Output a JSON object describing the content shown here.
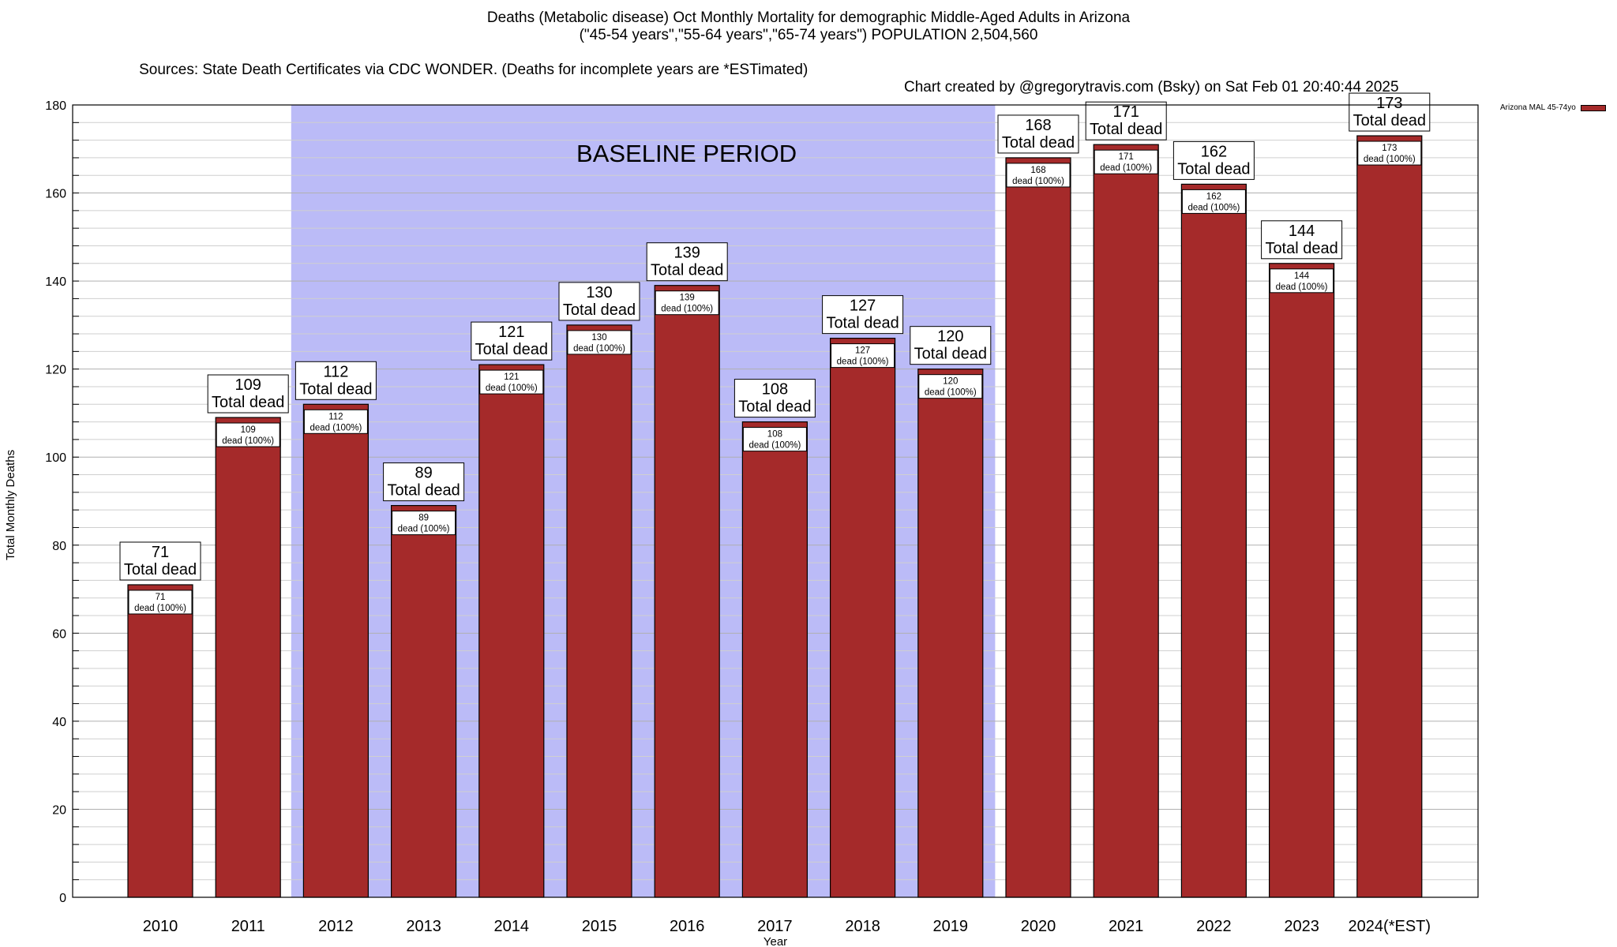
{
  "header": {
    "title_line1": "Deaths (Metabolic disease) Oct Monthly Mortality for demographic Middle-Aged Adults in Arizona",
    "title_line2": "(\"45-54 years\",\"55-64 years\",\"65-74 years\") POPULATION 2,504,560",
    "title_line3_sources": "Sources: State Death Certificates via CDC WONDER. (Deaths for incomplete years are *ESTimated)",
    "title_line3_credit": "Chart created by @gregorytravis.com (Bsky) on Sat Feb 01 20:40:44 2025"
  },
  "chart_data": {
    "type": "bar",
    "categories": [
      "2010",
      "2011",
      "2012",
      "2013",
      "2014",
      "2015",
      "2016",
      "2017",
      "2018",
      "2019",
      "2020",
      "2021",
      "2022",
      "2023",
      "2024(*EST)"
    ],
    "series": [
      {
        "name": "Arizona MAL 45-74yo",
        "values": [
          71,
          109,
          112,
          89,
          121,
          130,
          139,
          108,
          127,
          120,
          168,
          171,
          162,
          144,
          173
        ],
        "color": "#a52a2a"
      }
    ],
    "top_label_suffix": "Total dead",
    "inner_label_suffix": "dead (100%)",
    "xlabel": "Year",
    "ylabel": "Total Monthly Deaths",
    "ylim": [
      0,
      180
    ],
    "y_major_ticks": [
      0,
      20,
      40,
      60,
      80,
      100,
      120,
      140,
      160,
      180
    ],
    "y_minor_step": 4,
    "grid": true,
    "legend_position": "top-right",
    "baseline_band": {
      "label": "BASELINE PERIOD",
      "from_category": "2012",
      "to_category": "2019",
      "color": "#bbbbf7"
    }
  }
}
